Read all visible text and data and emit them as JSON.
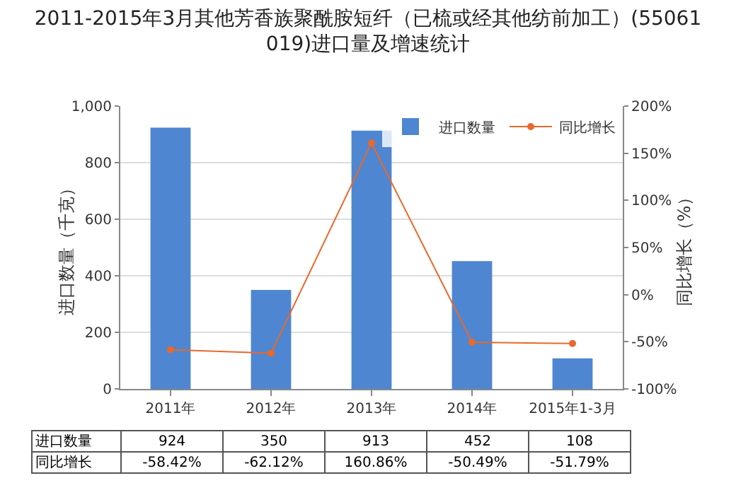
{
  "chart_data": {
    "type": "bar",
    "title": "2011-2015年3月其他芳香族聚酰胺短纤（已梳或经其他纺前加工）(55061019)进口量及增速统计",
    "categories": [
      "2011年",
      "2012年",
      "2013年",
      "2014年",
      "2015年1-3月"
    ],
    "ylabel": "进口数量（千克）",
    "y2label": "同比增长（%）",
    "series": [
      {
        "name": "进口数量",
        "color": "#4f86d1",
        "values": [
          924,
          350,
          913,
          452,
          108
        ],
        "value_labels": [
          "924",
          "350",
          "913",
          "452",
          "108"
        ]
      },
      {
        "name": "同比增长",
        "type": "line",
        "axis": "y2",
        "color": "#e8692a",
        "values": [
          -58.42,
          -62.12,
          160.86,
          -50.49,
          -51.79
        ],
        "value_labels": [
          "-58.42%",
          "-62.12%",
          "160.86%",
          "-50.49%",
          "-51.79%"
        ]
      }
    ],
    "ylim": [
      0,
      1000
    ],
    "yticks": [
      0,
      200,
      400,
      600,
      800,
      {
        "value": 1000,
        "label": "1,000"
      }
    ],
    "y2lim": [
      -100,
      200
    ],
    "y2ticks": [
      {
        "value": -100,
        "label": "-100%"
      },
      {
        "value": -50,
        "label": "-50%"
      },
      {
        "value": 0,
        "label": "0%"
      },
      {
        "value": 50,
        "label": "50%"
      },
      {
        "value": 100,
        "label": "100%"
      },
      {
        "value": 150,
        "label": "150%"
      },
      {
        "value": 200,
        "label": "200%"
      }
    ],
    "grid": "y",
    "legend": "top right",
    "marker": "circle"
  }
}
